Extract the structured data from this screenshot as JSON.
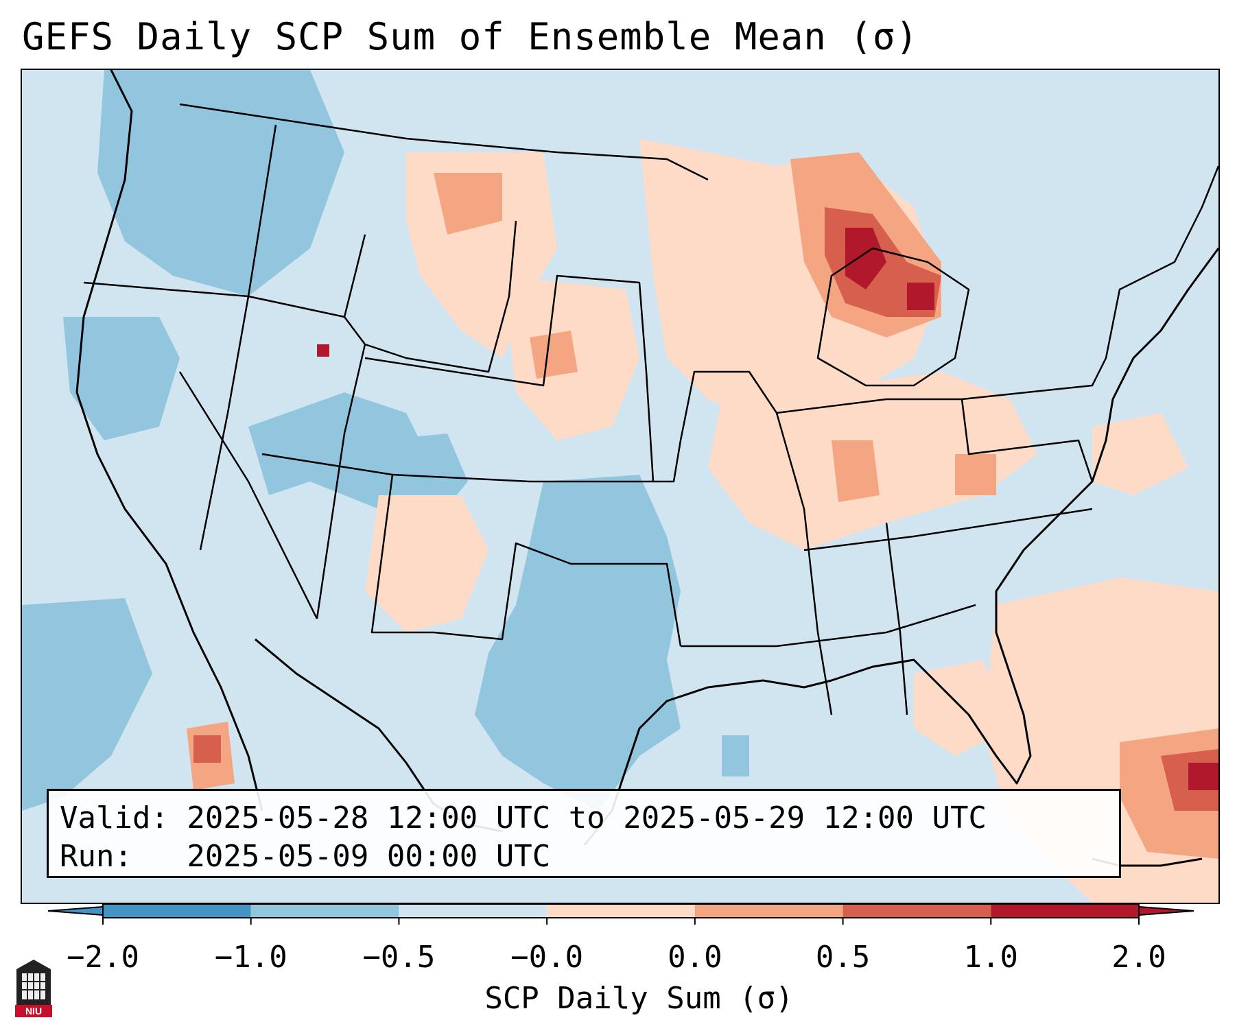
{
  "title": "GEFS Daily SCP Sum of Ensemble Mean (σ)",
  "info": {
    "valid_line": "Valid: 2025-05-28 12:00 UTC to 2025-05-29 12:00 UTC",
    "run_line": "Run:   2025-05-09 00:00 UTC"
  },
  "colorbar": {
    "label": "SCP Daily Sum (σ)",
    "ticks": [
      "−2.0",
      "−1.0",
      "−0.5",
      "−0.0",
      "0.0",
      "0.5",
      "1.0",
      "2.0"
    ],
    "colors": [
      "#4393c3",
      "#92c5de",
      "#d1e5f0",
      "#f7f7f7",
      "#fddbc7",
      "#f4a582",
      "#d6604d",
      "#b2182b"
    ],
    "extend": "both"
  },
  "logo": {
    "icon": "niu-logo-icon",
    "text": "NIU"
  },
  "map": {
    "background_class": "-0.5 to -0.0",
    "region": "Contiguous United States",
    "max_anomaly_region": "Northern Lower Michigan / Lake Huron",
    "cells": [
      {
        "area": "pacific-northwest",
        "class": -1.0
      },
      {
        "area": "great-basin",
        "class": -1.0
      },
      {
        "area": "texas",
        "class": -1.0
      },
      {
        "area": "northern-plains",
        "class": 0.0
      },
      {
        "area": "upper-midwest",
        "class": 0.5
      },
      {
        "area": "great-lakes",
        "class": 1.0
      },
      {
        "area": "ohio-valley",
        "class": 0.0
      },
      {
        "area": "caribbean",
        "class": 1.0
      }
    ]
  }
}
